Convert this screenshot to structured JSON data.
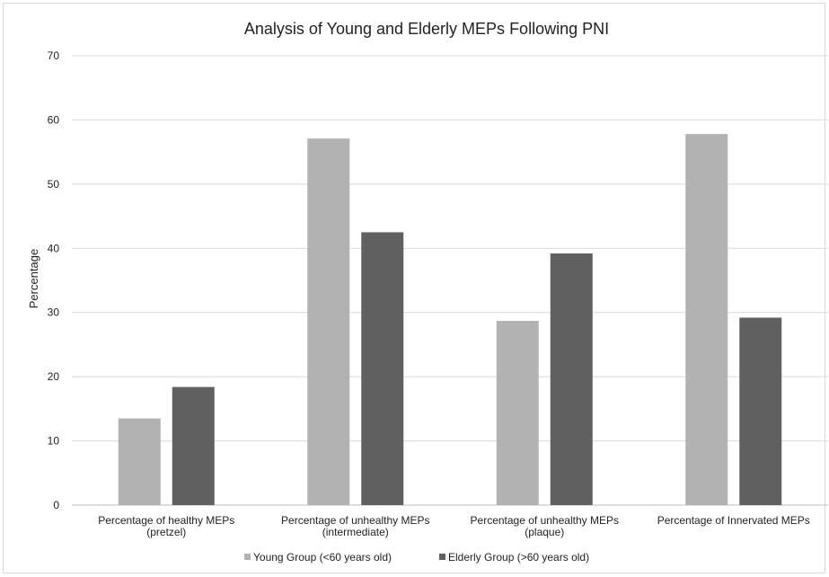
{
  "chart_data": {
    "type": "bar",
    "title": "Analysis of Young and Elderly MEPs Following PNI",
    "ylabel": "Percentage",
    "xlabel": "",
    "ylim": [
      0,
      70
    ],
    "yticks": [
      0,
      10,
      20,
      30,
      40,
      50,
      60,
      70
    ],
    "grid": true,
    "legend_position": "bottom",
    "categories": [
      [
        "Percentage of healthy MEPs",
        "(pretzel)"
      ],
      [
        "Percentage of unhealthy MEPs",
        "(intermediate)"
      ],
      [
        "Percentage of unhealthy MEPs",
        "(plaque)"
      ],
      [
        "Percentage of Innervated MEPs"
      ]
    ],
    "series": [
      {
        "name": "Young Group (<60 years old)",
        "color": "#b2b2b2",
        "values": [
          13.5,
          57.1,
          28.7,
          57.8
        ]
      },
      {
        "name": "Elderly Group (>60 years old)",
        "color": "#606060",
        "values": [
          18.4,
          42.5,
          39.2,
          29.2
        ]
      }
    ]
  }
}
